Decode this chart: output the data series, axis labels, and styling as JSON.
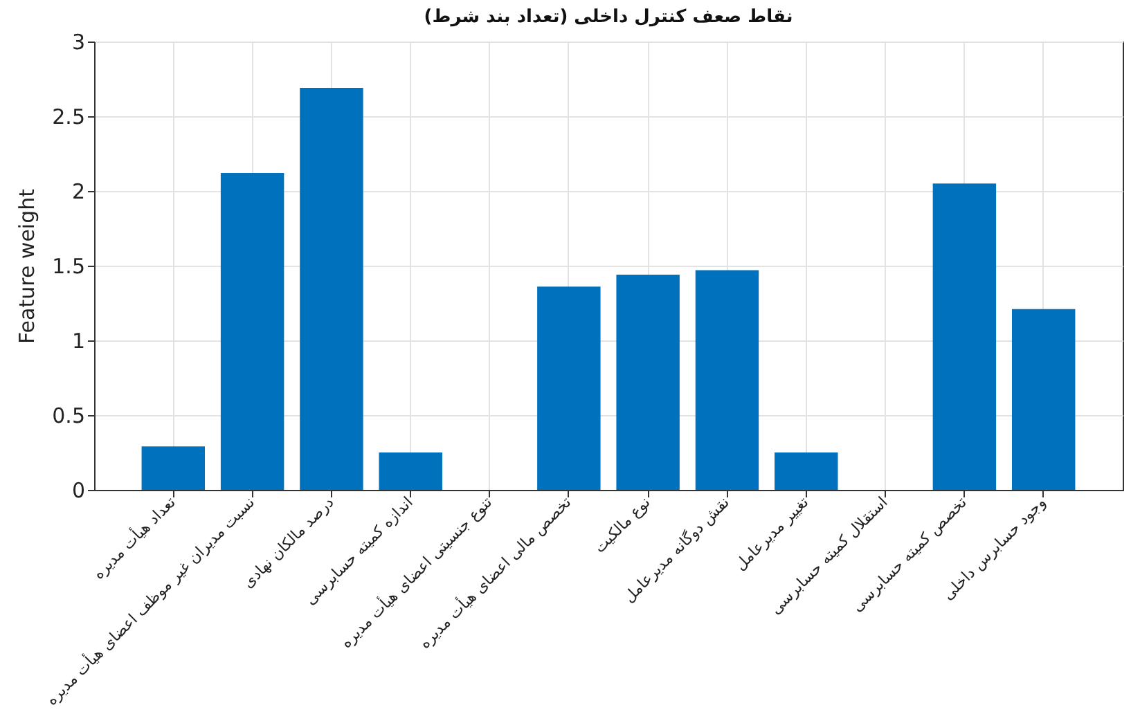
{
  "chart_data": {
    "type": "bar",
    "title": "(نقاط صعف کنترل داخلی (تعداد بند شرط",
    "ylabel": "Feature weight",
    "categories": [
      "تعداد هیأت مدیره",
      "نسبت مدیران غیر موظف اعضای هیأت مدیره",
      "درصد مالکان نهادی",
      "اندازه کمیته حسابرسی",
      "تنوع جنسیتی اعضای هیأت مدیره",
      "تخصص مالی اعضای هیأت مدیره",
      "نوع مالکیت",
      "نقش دوگانه مدیرعامل",
      "تغییر مدیرعامل",
      "استقلال کمیته حسابرسی",
      "تخصص کمیته حسابرسی",
      "وجود حسابرس داخلی"
    ],
    "values": [
      0.29,
      2.12,
      2.69,
      0.25,
      0,
      1.36,
      1.44,
      1.47,
      0.25,
      0,
      2.05,
      1.21
    ],
    "color": "#0072bd",
    "ylim": [
      0,
      3
    ],
    "yticks": [
      0,
      0.5,
      1,
      1.5,
      2,
      2.5,
      3
    ],
    "grid": true
  }
}
